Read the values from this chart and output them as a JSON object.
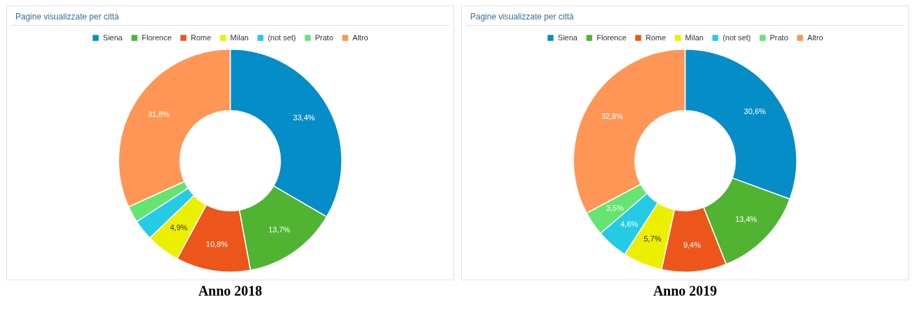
{
  "chart_data": [
    {
      "type": "donut",
      "title": "Pagine visualizzate per città",
      "categories": [
        "Siena",
        "Florence",
        "Rome",
        "Milan",
        "(not set)",
        "Prato",
        "Altro"
      ],
      "values": [
        33.4,
        13.7,
        10.8,
        4.9,
        3.0,
        2.4,
        31.8
      ],
      "colors": [
        "#058dc7",
        "#50b432",
        "#ed561b",
        "#edef00",
        "#24cbe5",
        "#64e572",
        "#ff9655"
      ],
      "value_labels": [
        "33,4%",
        "13,7%",
        "10,8%",
        "4,9%",
        null,
        null,
        "31,8%"
      ],
      "legend": "top",
      "annotations": [
        "Anno 2018"
      ]
    },
    {
      "type": "donut",
      "title": "Pagine visualizzate per città",
      "categories": [
        "Siena",
        "Florence",
        "Rome",
        "Milan",
        "(not set)",
        "Prato",
        "Altro"
      ],
      "values": [
        30.6,
        13.4,
        9.4,
        5.7,
        4.6,
        3.5,
        32.8
      ],
      "colors": [
        "#058dc7",
        "#50b432",
        "#ed561b",
        "#edef00",
        "#24cbe5",
        "#64e572",
        "#ff9655"
      ],
      "value_labels": [
        "30,6%",
        "13,4%",
        "9,4%",
        "5,7%",
        "4,6%",
        "3,5%",
        "32,8%"
      ],
      "legend": "top",
      "annotations": [
        "Anno 2019"
      ]
    }
  ]
}
